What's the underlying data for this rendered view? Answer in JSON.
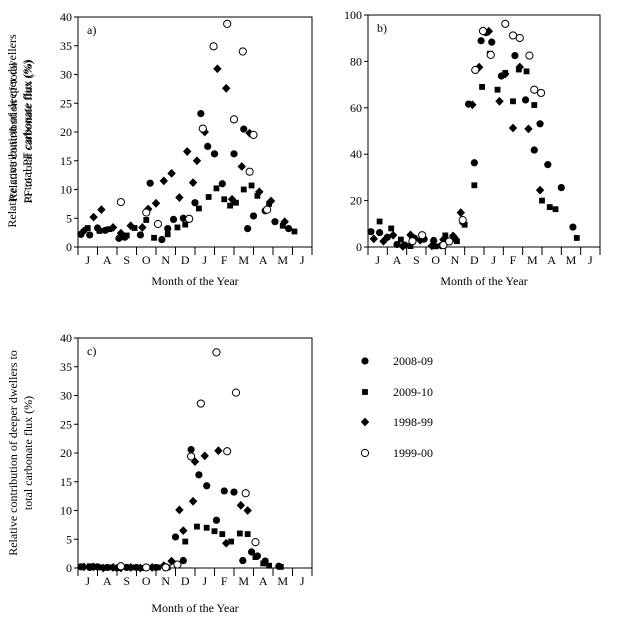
{
  "figure": {
    "legend": [
      {
        "name": "2008-09",
        "marker": "circle-filled"
      },
      {
        "name": "2009-10",
        "marker": "square-filled"
      },
      {
        "name": "1998-99",
        "marker": "diamond-filled"
      },
      {
        "name": "1999-00",
        "marker": "circle-open"
      }
    ]
  },
  "chart_data": [
    {
      "id": "a",
      "type": "scatter",
      "panel_label": "a)",
      "xlabel": "Month of the Year",
      "ylabel": "Relative contribution of total\nPF to total carbonate flux (%)",
      "categories": [
        "J",
        "A",
        "S",
        "O",
        "N",
        "D",
        "J",
        "F",
        "M",
        "A",
        "M",
        "J"
      ],
      "xlim": [
        0,
        12
      ],
      "ylim": [
        0,
        40
      ],
      "yticks": [
        0,
        5,
        10,
        15,
        20,
        25,
        30,
        35,
        40
      ],
      "series": [
        {
          "name": "2008-09",
          "marker": "circle-filled",
          "points": [
            [
              0.15,
              2.2
            ],
            [
              0.6,
              2.1
            ],
            [
              1.0,
              3.3
            ],
            [
              1.4,
              2.9
            ],
            [
              2.1,
              1.5
            ],
            [
              2.4,
              1.7
            ],
            [
              3.2,
              2.1
            ],
            [
              3.7,
              11.1
            ],
            [
              4.3,
              1.3
            ],
            [
              4.6,
              3.2
            ],
            [
              4.9,
              4.8
            ],
            [
              5.4,
              5.0
            ],
            [
              6.0,
              7.7
            ],
            [
              6.3,
              23.2
            ],
            [
              6.65,
              17.5
            ],
            [
              7.0,
              16.2
            ],
            [
              7.4,
              11.0
            ],
            [
              8.0,
              16.2
            ],
            [
              8.5,
              20.5
            ],
            [
              8.7,
              3.2
            ],
            [
              9.0,
              5.4
            ],
            [
              9.6,
              6.3
            ],
            [
              10.1,
              4.4
            ],
            [
              10.8,
              3.2
            ]
          ]
        },
        {
          "name": "2009-10",
          "marker": "square-filled",
          "points": [
            [
              0.5,
              3.3
            ],
            [
              1.1,
              2.8
            ],
            [
              1.6,
              3.1
            ],
            [
              2.5,
              2.0
            ],
            [
              2.9,
              3.3
            ],
            [
              3.5,
              4.7
            ],
            [
              3.9,
              1.6
            ],
            [
              4.6,
              2.2
            ],
            [
              5.1,
              3.4
            ],
            [
              5.5,
              3.9
            ],
            [
              6.2,
              6.7
            ],
            [
              6.7,
              8.7
            ],
            [
              7.1,
              10.2
            ],
            [
              7.5,
              8.3
            ],
            [
              7.8,
              7.2
            ],
            [
              8.1,
              7.7
            ],
            [
              8.5,
              10.0
            ],
            [
              8.9,
              10.7
            ],
            [
              9.2,
              8.9
            ],
            [
              9.8,
              7.5
            ],
            [
              10.5,
              3.7
            ],
            [
              11.1,
              2.7
            ]
          ]
        },
        {
          "name": "1998-99",
          "marker": "diamond-filled",
          "points": [
            [
              0.3,
              2.8
            ],
            [
              0.8,
              5.2
            ],
            [
              1.2,
              6.5
            ],
            [
              1.8,
              3.4
            ],
            [
              2.2,
              2.4
            ],
            [
              2.7,
              3.7
            ],
            [
              3.3,
              3.4
            ],
            [
              3.6,
              6.6
            ],
            [
              4.0,
              7.6
            ],
            [
              4.4,
              11.5
            ],
            [
              4.8,
              12.8
            ],
            [
              5.2,
              8.6
            ],
            [
              5.6,
              16.6
            ],
            [
              5.9,
              11.2
            ],
            [
              6.1,
              15.0
            ],
            [
              6.5,
              20.0
            ],
            [
              7.15,
              31.0
            ],
            [
              7.6,
              27.6
            ],
            [
              7.9,
              8.3
            ],
            [
              8.4,
              14.0
            ],
            [
              8.8,
              19.8
            ],
            [
              9.3,
              9.6
            ],
            [
              9.9,
              8.0
            ],
            [
              10.6,
              4.4
            ]
          ]
        },
        {
          "name": "1999-00",
          "marker": "circle-open",
          "points": [
            [
              2.2,
              7.8
            ],
            [
              3.5,
              6.0
            ],
            [
              4.1,
              4.0
            ],
            [
              5.7,
              4.9
            ],
            [
              6.4,
              20.6
            ],
            [
              6.95,
              34.9
            ],
            [
              7.65,
              38.8
            ],
            [
              8.0,
              22.2
            ],
            [
              8.45,
              34.0
            ],
            [
              8.8,
              13.1
            ],
            [
              9.0,
              19.5
            ],
            [
              9.7,
              6.5
            ]
          ]
        }
      ]
    },
    {
      "id": "b",
      "type": "scatter",
      "panel_label": "b)",
      "xlabel": "Month of the Year",
      "ylabel": "Relative contribution of deeper dwellers\nto total PF carbonate flux (%)",
      "categories": [
        "J",
        "A",
        "S",
        "O",
        "N",
        "D",
        "J",
        "F",
        "M",
        "A",
        "M",
        "J"
      ],
      "xlim": [
        0,
        12
      ],
      "ylim": [
        0,
        100
      ],
      "yticks": [
        0,
        20,
        40,
        60,
        80,
        100
      ],
      "series": [
        {
          "name": "2008-09",
          "marker": "circle-filled",
          "points": [
            [
              0.15,
              6.6
            ],
            [
              0.6,
              6.2
            ],
            [
              1.0,
              4.2
            ],
            [
              1.5,
              1.1
            ],
            [
              1.9,
              0.8
            ],
            [
              2.4,
              3.8
            ],
            [
              2.9,
              3.4
            ],
            [
              3.4,
              2.8
            ],
            [
              3.8,
              0.6
            ],
            [
              4.1,
              2.3
            ],
            [
              4.5,
              3.5
            ],
            [
              4.9,
              10.8
            ],
            [
              5.2,
              61.6
            ],
            [
              5.5,
              36.3
            ],
            [
              5.85,
              88.9
            ],
            [
              6.1,
              92.4
            ],
            [
              6.4,
              88.3
            ],
            [
              6.9,
              73.7
            ],
            [
              7.6,
              82.5
            ],
            [
              8.15,
              63.4
            ],
            [
              8.6,
              41.8
            ],
            [
              8.9,
              53.1
            ],
            [
              9.3,
              35.5
            ],
            [
              10.0,
              25.6
            ],
            [
              10.6,
              8.6
            ]
          ]
        },
        {
          "name": "2009-10",
          "marker": "square-filled",
          "points": [
            [
              0.6,
              11.0
            ],
            [
              1.2,
              8.0
            ],
            [
              1.7,
              3.2
            ],
            [
              2.2,
              0.4
            ],
            [
              2.8,
              3.2
            ],
            [
              3.5,
              0.3
            ],
            [
              4.0,
              5.0
            ],
            [
              4.6,
              2.5
            ],
            [
              5.0,
              9.6
            ],
            [
              5.5,
              26.6
            ],
            [
              5.9,
              69.0
            ],
            [
              6.3,
              83.3
            ],
            [
              6.7,
              67.8
            ],
            [
              7.1,
              75.0
            ],
            [
              7.5,
              62.8
            ],
            [
              7.8,
              76.5
            ],
            [
              8.2,
              75.7
            ],
            [
              8.6,
              61.2
            ],
            [
              9.0,
              20.0
            ],
            [
              9.4,
              17.2
            ],
            [
              9.7,
              16.3
            ],
            [
              10.8,
              3.9
            ]
          ]
        },
        {
          "name": "1998-99",
          "marker": "diamond-filled",
          "points": [
            [
              0.3,
              3.5
            ],
            [
              0.8,
              2.5
            ],
            [
              1.3,
              5.1
            ],
            [
              1.8,
              0.3
            ],
            [
              2.2,
              5.2
            ],
            [
              2.7,
              2.9
            ],
            [
              3.3,
              0.5
            ],
            [
              3.9,
              3.2
            ],
            [
              4.4,
              4.8
            ],
            [
              4.8,
              14.8
            ],
            [
              5.4,
              61.3
            ],
            [
              5.75,
              77.5
            ],
            [
              6.25,
              93.0
            ],
            [
              6.8,
              62.8
            ],
            [
              7.1,
              74.6
            ],
            [
              7.5,
              51.3
            ],
            [
              7.85,
              77.6
            ],
            [
              8.3,
              50.9
            ],
            [
              8.9,
              24.5
            ]
          ]
        },
        {
          "name": "1999-00",
          "marker": "circle-open",
          "points": [
            [
              2.3,
              2.5
            ],
            [
              2.8,
              5.1
            ],
            [
              3.9,
              0.8
            ],
            [
              4.2,
              2.4
            ],
            [
              4.9,
              11.6
            ],
            [
              5.55,
              76.3
            ],
            [
              5.95,
              93.1
            ],
            [
              6.35,
              82.8
            ],
            [
              7.1,
              96.2
            ],
            [
              7.5,
              91.2
            ],
            [
              7.85,
              90.1
            ],
            [
              8.35,
              82.5
            ],
            [
              8.6,
              67.8
            ],
            [
              8.95,
              66.4
            ]
          ]
        }
      ]
    },
    {
      "id": "c",
      "type": "scatter",
      "panel_label": "c)",
      "xlabel": "Month of the Year",
      "ylabel": "Relative contribution of deeper dwellers to\ntotal carbonate flux (%)",
      "categories": [
        "J",
        "A",
        "S",
        "O",
        "N",
        "D",
        "J",
        "F",
        "M",
        "A",
        "M",
        "J"
      ],
      "xlim": [
        0,
        12
      ],
      "ylim": [
        0,
        40
      ],
      "yticks": [
        0,
        5,
        10,
        15,
        20,
        25,
        30,
        35,
        40
      ],
      "series": [
        {
          "name": "2008-09",
          "marker": "circle-filled",
          "points": [
            [
              0.15,
              0.2
            ],
            [
              0.6,
              0.1
            ],
            [
              1.0,
              0.2
            ],
            [
              1.5,
              0.1
            ],
            [
              2.0,
              0.0
            ],
            [
              2.5,
              0.1
            ],
            [
              3.0,
              0.1
            ],
            [
              3.5,
              0.1
            ],
            [
              4.0,
              0.1
            ],
            [
              4.5,
              0.2
            ],
            [
              5.0,
              5.4
            ],
            [
              5.4,
              1.3
            ],
            [
              5.8,
              20.6
            ],
            [
              6.2,
              16.2
            ],
            [
              6.6,
              14.3
            ],
            [
              7.1,
              8.3
            ],
            [
              7.5,
              13.4
            ],
            [
              8.0,
              13.2
            ],
            [
              8.45,
              1.3
            ],
            [
              8.9,
              2.8
            ],
            [
              9.2,
              2.1
            ],
            [
              9.6,
              1.2
            ],
            [
              10.3,
              0.3
            ]
          ]
        },
        {
          "name": "2009-10",
          "marker": "square-filled",
          "points": [
            [
              0.6,
              0.3
            ],
            [
              1.1,
              0.1
            ],
            [
              1.6,
              0.1
            ],
            [
              2.1,
              0.0
            ],
            [
              2.9,
              0.1
            ],
            [
              3.4,
              0.0
            ],
            [
              4.1,
              0.1
            ],
            [
              4.6,
              0.1
            ],
            [
              5.1,
              0.5
            ],
            [
              5.5,
              4.6
            ],
            [
              6.1,
              7.2
            ],
            [
              6.6,
              7.0
            ],
            [
              7.0,
              6.4
            ],
            [
              7.4,
              5.9
            ],
            [
              7.85,
              4.6
            ],
            [
              8.3,
              6.0
            ],
            [
              8.7,
              5.9
            ],
            [
              9.1,
              1.9
            ],
            [
              9.5,
              0.8
            ],
            [
              9.8,
              0.4
            ],
            [
              10.4,
              0.2
            ]
          ]
        },
        {
          "name": "1998-99",
          "marker": "diamond-filled",
          "points": [
            [
              0.3,
              0.2
            ],
            [
              0.8,
              0.2
            ],
            [
              1.3,
              0.0
            ],
            [
              1.8,
              0.1
            ],
            [
              2.2,
              0.0
            ],
            [
              2.7,
              0.1
            ],
            [
              3.2,
              0.0
            ],
            [
              3.8,
              0.1
            ],
            [
              4.4,
              0.4
            ],
            [
              4.8,
              1.2
            ],
            [
              5.2,
              10.1
            ],
            [
              5.4,
              6.5
            ],
            [
              5.9,
              11.6
            ],
            [
              6.0,
              18.5
            ],
            [
              6.5,
              19.5
            ],
            [
              7.2,
              20.4
            ],
            [
              7.6,
              4.3
            ],
            [
              8.35,
              10.9
            ],
            [
              8.7,
              10.0
            ]
          ]
        },
        {
          "name": "1999-00",
          "marker": "circle-open",
          "points": [
            [
              2.2,
              0.3
            ],
            [
              3.5,
              0.1
            ],
            [
              4.5,
              0.1
            ],
            [
              5.1,
              0.6
            ],
            [
              5.8,
              19.4
            ],
            [
              6.3,
              28.6
            ],
            [
              7.1,
              37.5
            ],
            [
              7.65,
              20.3
            ],
            [
              8.1,
              30.5
            ],
            [
              8.6,
              13.0
            ],
            [
              9.1,
              4.5
            ]
          ]
        }
      ]
    }
  ]
}
